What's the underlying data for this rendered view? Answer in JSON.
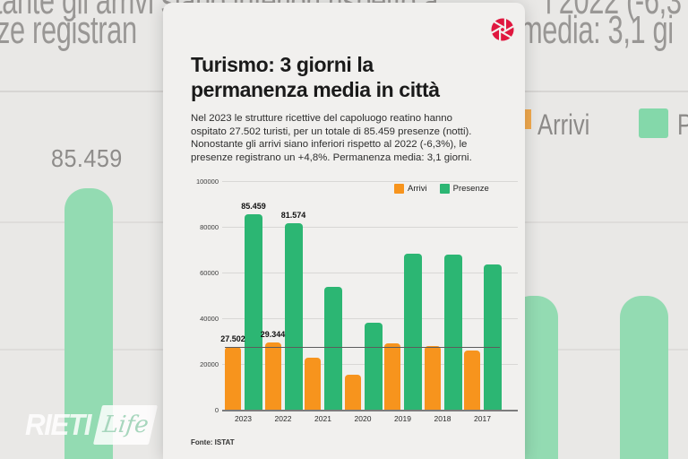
{
  "background": {
    "big_text": {
      "line1_left": "tante gli arrivi siano inferiori rispetto a",
      "line1_right": "l 2022 (-6,3",
      "line2_left": "ze registran",
      "line2_right": "media: 3,1 gi"
    },
    "big_value_label": "85.459",
    "big_legend": {
      "arrivi": "Arrivi",
      "presenze_partial": "P"
    },
    "logo": {
      "text": "RIETI",
      "suffix": "Life"
    },
    "colors": {
      "page_bg": "#e9e8e6",
      "bar_green_pale": "#93dbb2",
      "text_gray": "#999795"
    }
  },
  "card": {
    "title_line1": "Turismo: 3 giorni la",
    "title_line2": "permanenza media in città",
    "body_lines": [
      "Nel 2023 le strutture ricettive del capoluogo reatino hanno",
      "ospitato 27.502 turisti, per un totale di 85.459 presenze (notti).",
      "Nonostante gli arrivi siano inferiori rispetto al 2022 (-6,3%), le",
      "presenze registrano un +4,8%. Permanenza media: 3,1 giorni."
    ],
    "source": "Fonte: ISTAT",
    "icon": "aperture-icon",
    "colors": {
      "card_bg": "#f1f0ee",
      "accent_red": "#e0173f",
      "title": "#1a1a1a"
    }
  },
  "chart_data": {
    "type": "bar",
    "categories": [
      "2023",
      "2022",
      "2021",
      "2020",
      "2019",
      "2018",
      "2017"
    ],
    "series": [
      {
        "name": "Arrivi",
        "color": "#f7941d",
        "values": [
          27502,
          29344,
          22600,
          15400,
          28900,
          28000,
          25900
        ]
      },
      {
        "name": "Presenze",
        "color": "#2cb673",
        "values": [
          85459,
          81574,
          53900,
          38200,
          68400,
          67700,
          63400
        ]
      }
    ],
    "annotations": [
      {
        "series": "Presenze",
        "category": "2023",
        "label": "85.459"
      },
      {
        "series": "Presenze",
        "category": "2022",
        "label": "81.574"
      },
      {
        "series": "Arrivi",
        "category": "2023",
        "label": "27.502"
      },
      {
        "series": "Arrivi",
        "category": "2022",
        "label": "29.344"
      }
    ],
    "title": "Turismo: 3 giorni la permanenza media in città",
    "xlabel": "",
    "ylabel": "",
    "ylim": [
      0,
      100000
    ],
    "yticks": [
      0,
      20000,
      40000,
      60000,
      80000,
      100000
    ],
    "reference_line_value": 27502,
    "grid": true,
    "legend_position": "top-right",
    "source": "Fonte: ISTAT"
  }
}
